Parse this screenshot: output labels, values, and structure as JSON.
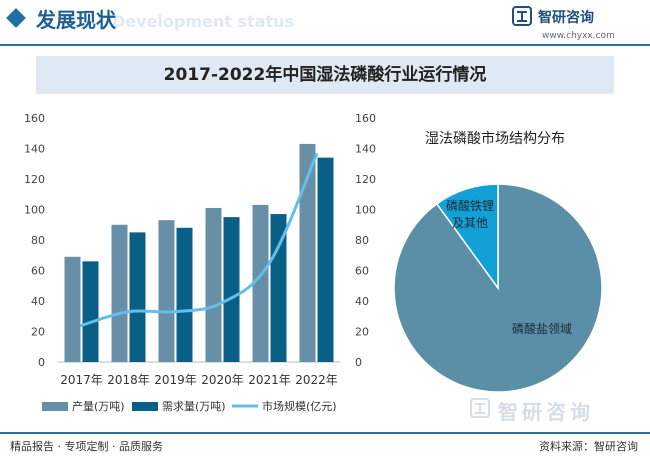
{
  "header": {
    "section_title": "发展现状",
    "section_subtitle": "Development status",
    "brand_name": "智研咨询",
    "brand_url": "www.chyxx.com"
  },
  "banner": {
    "title": "2017-2022年中国湿法磷酸行业运行情况"
  },
  "colors": {
    "production": "#6790a8",
    "demand": "#0a5f87",
    "market": "#63bfea",
    "pie_main": "#5b8fa8",
    "pie_minor": "#12a0d7"
  },
  "chart_data": [
    {
      "type": "bar",
      "categories": [
        "2017年",
        "2018年",
        "2019年",
        "2020年",
        "2021年",
        "2022年"
      ],
      "series": [
        {
          "name": "产量(万吨)",
          "kind": "bar",
          "values": [
            69,
            90,
            93,
            101,
            103,
            143
          ]
        },
        {
          "name": "需求量(万吨)",
          "kind": "bar",
          "values": [
            66,
            85,
            88,
            95,
            97,
            134
          ]
        },
        {
          "name": "市场规模(亿元)",
          "kind": "line",
          "axis": "right",
          "values": [
            24,
            33,
            33,
            39,
            65,
            136
          ]
        }
      ],
      "y_left": {
        "min": 0,
        "max": 160,
        "ticks": [
          "0",
          "20",
          "40",
          "60",
          "80",
          "100",
          "120",
          "140",
          "160"
        ]
      },
      "y_right": {
        "min": 0,
        "max": 160,
        "ticks": [
          "0",
          "20",
          "40",
          "60",
          "80",
          "100",
          "120",
          "140",
          "160"
        ]
      },
      "legend_position": "bottom"
    },
    {
      "type": "pie",
      "title": "湿法磷酸市场结构分布",
      "slices": [
        {
          "label": "磷酸盐领域",
          "value": 90
        },
        {
          "label": "磷酸铁锂及其他",
          "value": 10
        }
      ]
    }
  ],
  "footer": {
    "left_text": "精品报告 · 专项定制 · 品质服务",
    "source_text": "资料来源：智研咨询",
    "watermark": "智研咨询"
  }
}
